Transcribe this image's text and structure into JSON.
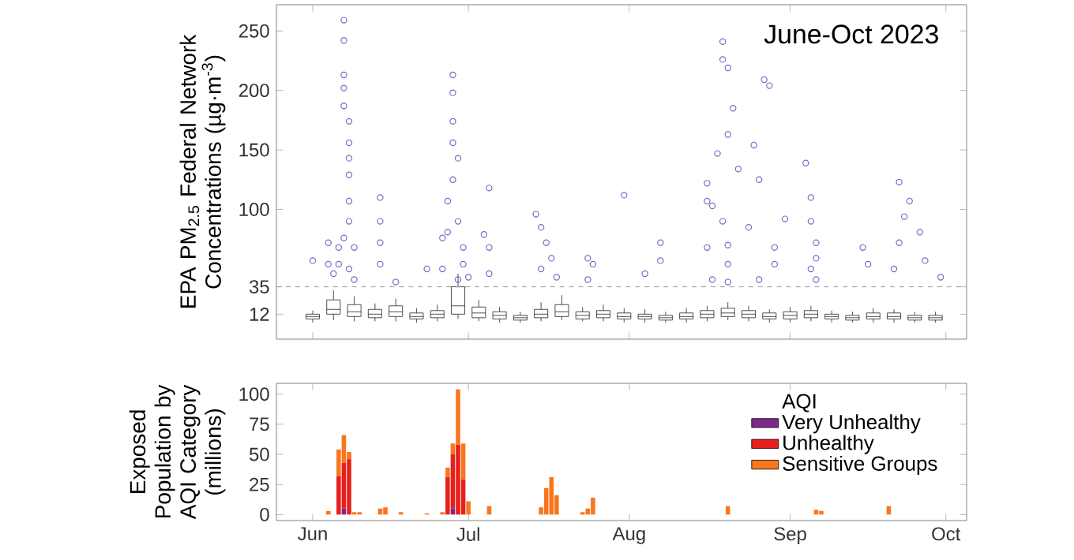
{
  "chart_data": [
    {
      "type": "scatter",
      "ylabel": "EPA PM$_{2.5}$ Federal Network Concentrations (µg·m$^{-3}$)",
      "annotations": [
        "June-Oct 2023"
      ],
      "xlim": [
        "2023-05-25",
        "2023-10-05"
      ],
      "xticks": [
        {
          "value": "2023-06-01",
          "label": null
        },
        {
          "value": "2023-07-01",
          "label": null
        },
        {
          "value": "2023-08-01",
          "label": null
        },
        {
          "value": "2023-09-01",
          "label": null
        },
        {
          "value": "2023-10-01",
          "label": null
        }
      ],
      "ylim": [
        -9,
        272
      ],
      "yticks": [
        12,
        35,
        100,
        150,
        200,
        250
      ],
      "tick_labels": "y",
      "ref_lines": [
        {
          "axis": "y",
          "value": 35,
          "color": "#9a9a9a",
          "line_style": "dashed"
        }
      ],
      "series": [
        {
          "type": "scatter",
          "color": "#6e6ec8",
          "marker": "circle",
          "x": [
            "2023-06-07",
            "2023-06-07",
            "2023-06-07",
            "2023-06-07",
            "2023-06-07",
            "2023-06-08",
            "2023-06-08",
            "2023-06-08",
            "2023-06-08",
            "2023-06-08",
            "2023-06-08",
            "2023-06-07",
            "2023-06-06",
            "2023-06-06",
            "2023-06-04",
            "2023-06-04",
            "2023-06-01",
            "2023-06-08",
            "2023-06-09",
            "2023-06-05",
            "2023-06-09",
            "2023-06-14",
            "2023-06-14",
            "2023-06-14",
            "2023-06-14",
            "2023-06-17",
            "2023-06-23",
            "2023-06-28",
            "2023-06-28",
            "2023-06-28",
            "2023-06-28",
            "2023-06-29",
            "2023-06-28",
            "2023-06-27",
            "2023-06-29",
            "2023-06-27",
            "2023-06-30",
            "2023-06-30",
            "2023-06-26",
            "2023-06-26",
            "2023-06-29",
            "2023-07-01",
            "2023-07-05",
            "2023-07-04",
            "2023-07-05",
            "2023-07-05",
            "2023-07-14",
            "2023-07-15",
            "2023-07-16",
            "2023-07-17",
            "2023-07-15",
            "2023-07-18",
            "2023-07-24",
            "2023-07-25",
            "2023-07-24",
            "2023-07-31",
            "2023-08-07",
            "2023-08-07",
            "2023-08-04",
            "2023-08-19",
            "2023-08-19",
            "2023-08-20",
            "2023-08-21",
            "2023-08-20",
            "2023-08-18",
            "2023-08-22",
            "2023-08-16",
            "2023-08-16",
            "2023-08-17",
            "2023-08-19",
            "2023-08-20",
            "2023-08-16",
            "2023-08-20",
            "2023-08-17",
            "2023-08-20",
            "2023-08-27",
            "2023-08-28",
            "2023-08-25",
            "2023-08-26",
            "2023-08-24",
            "2023-08-29",
            "2023-08-29",
            "2023-08-26",
            "2023-09-04",
            "2023-09-05",
            "2023-09-05",
            "2023-09-06",
            "2023-09-06",
            "2023-09-05",
            "2023-09-06",
            "2023-08-31",
            "2023-09-15",
            "2023-09-16",
            "2023-09-21",
            "2023-09-22",
            "2023-09-22",
            "2023-09-24",
            "2023-09-23",
            "2023-09-26",
            "2023-09-27",
            "2023-09-30"
          ],
          "values": [
            259,
            242,
            213,
            202,
            187,
            174,
            156,
            143,
            129,
            107,
            90,
            76,
            68,
            54,
            72,
            54,
            57,
            50,
            41,
            46,
            68,
            110,
            90,
            72,
            54,
            39,
            50,
            213,
            198,
            174,
            156,
            143,
            125,
            107,
            90,
            81,
            68,
            54,
            76,
            50,
            41,
            43,
            118,
            79,
            68,
            46,
            96,
            85,
            72,
            59,
            50,
            43,
            59,
            54,
            41,
            112,
            72,
            57,
            46,
            241,
            226,
            219,
            185,
            163,
            147,
            134,
            122,
            107,
            103,
            90,
            70,
            68,
            54,
            41,
            39,
            209,
            204,
            154,
            125,
            85,
            68,
            54,
            41,
            139,
            110,
            90,
            72,
            59,
            50,
            41,
            92,
            68,
            54,
            50,
            72,
            123,
            107,
            94,
            81,
            57,
            43
          ]
        },
        {
          "type": "box",
          "color": "#222222",
          "x": [
            "2023-06-01",
            "2023-06-05",
            "2023-06-09",
            "2023-06-13",
            "2023-06-17",
            "2023-06-21",
            "2023-06-25",
            "2023-06-29",
            "2023-07-03",
            "2023-07-07",
            "2023-07-11",
            "2023-07-15",
            "2023-07-19",
            "2023-07-23",
            "2023-07-27",
            "2023-07-31",
            "2023-08-04",
            "2023-08-08",
            "2023-08-12",
            "2023-08-16",
            "2023-08-20",
            "2023-08-24",
            "2023-08-28",
            "2023-09-01",
            "2023-09-05",
            "2023-09-09",
            "2023-09-13",
            "2023-09-17",
            "2023-09-21",
            "2023-09-25",
            "2023-09-29"
          ],
          "boxes": [
            {
              "low": 5,
              "q1": 8,
              "median": 10,
              "q3": 12,
              "high": 15
            },
            {
              "low": 7,
              "q1": 12,
              "median": 16,
              "q3": 24,
              "high": 32
            },
            {
              "low": 6,
              "q1": 10,
              "median": 14,
              "q3": 20,
              "high": 27
            },
            {
              "low": 6,
              "q1": 9,
              "median": 12,
              "q3": 16,
              "high": 21
            },
            {
              "low": 6,
              "q1": 10,
              "median": 14,
              "q3": 19,
              "high": 25
            },
            {
              "low": 5,
              "q1": 8,
              "median": 10,
              "q3": 13,
              "high": 17
            },
            {
              "low": 6,
              "q1": 9,
              "median": 12,
              "q3": 15,
              "high": 20
            },
            {
              "low": 8,
              "q1": 12,
              "median": 19,
              "q3": 35,
              "high": 46
            },
            {
              "low": 6,
              "q1": 9,
              "median": 13,
              "q3": 18,
              "high": 24
            },
            {
              "low": 5,
              "q1": 8,
              "median": 11,
              "q3": 14,
              "high": 18
            },
            {
              "low": 5,
              "q1": 7,
              "median": 9,
              "q3": 11,
              "high": 14
            },
            {
              "low": 6,
              "q1": 9,
              "median": 12,
              "q3": 16,
              "high": 22
            },
            {
              "low": 7,
              "q1": 10,
              "median": 14,
              "q3": 20,
              "high": 28
            },
            {
              "low": 6,
              "q1": 8,
              "median": 11,
              "q3": 14,
              "high": 18
            },
            {
              "low": 6,
              "q1": 9,
              "median": 12,
              "q3": 15,
              "high": 20
            },
            {
              "low": 5,
              "q1": 8,
              "median": 10,
              "q3": 13,
              "high": 17
            },
            {
              "low": 5,
              "q1": 8,
              "median": 10,
              "q3": 12,
              "high": 16
            },
            {
              "low": 5,
              "q1": 7,
              "median": 9,
              "q3": 11,
              "high": 14
            },
            {
              "low": 5,
              "q1": 8,
              "median": 10,
              "q3": 13,
              "high": 17
            },
            {
              "low": 6,
              "q1": 9,
              "median": 12,
              "q3": 15,
              "high": 19
            },
            {
              "low": 7,
              "q1": 10,
              "median": 13,
              "q3": 17,
              "high": 22
            },
            {
              "low": 6,
              "q1": 9,
              "median": 12,
              "q3": 15,
              "high": 19
            },
            {
              "low": 5,
              "q1": 8,
              "median": 10,
              "q3": 13,
              "high": 16
            },
            {
              "low": 5,
              "q1": 8,
              "median": 11,
              "q3": 14,
              "high": 18
            },
            {
              "low": 6,
              "q1": 9,
              "median": 12,
              "q3": 15,
              "high": 19
            },
            {
              "low": 5,
              "q1": 8,
              "median": 10,
              "q3": 12,
              "high": 15
            },
            {
              "low": 5,
              "q1": 7,
              "median": 9,
              "q3": 11,
              "high": 14
            },
            {
              "low": 5,
              "q1": 8,
              "median": 10,
              "q3": 13,
              "high": 17
            },
            {
              "low": 5,
              "q1": 8,
              "median": 10,
              "q3": 13,
              "high": 16
            },
            {
              "low": 5,
              "q1": 7,
              "median": 9,
              "q3": 11,
              "high": 14
            },
            {
              "low": 5,
              "q1": 7,
              "median": 9,
              "q3": 11,
              "high": 14
            }
          ]
        }
      ]
    },
    {
      "type": "bar",
      "stacked": true,
      "ylabel": "Exposed Population by AQI Category (millions)",
      "legend_title": "AQI",
      "legend": "top right",
      "xlim": [
        "2023-05-25",
        "2023-10-05"
      ],
      "ylim": [
        -5,
        109
      ],
      "yticks": [
        0,
        25,
        50,
        75,
        100
      ],
      "xticks": [
        {
          "value": "2023-06-01",
          "label": "Jun"
        },
        {
          "value": "2023-07-01",
          "label": "Jul"
        },
        {
          "value": "2023-08-01",
          "label": "Aug"
        },
        {
          "value": "2023-09-01",
          "label": "Sep"
        },
        {
          "value": "2023-10-01",
          "label": "Oct"
        }
      ],
      "x": [
        "2023-06-04",
        "2023-06-06",
        "2023-06-07",
        "2023-06-08",
        "2023-06-09",
        "2023-06-10",
        "2023-06-14",
        "2023-06-15",
        "2023-06-18",
        "2023-06-23",
        "2023-06-26",
        "2023-06-27",
        "2023-06-28",
        "2023-06-29",
        "2023-06-30",
        "2023-07-01",
        "2023-07-05",
        "2023-07-15",
        "2023-07-16",
        "2023-07-17",
        "2023-07-18",
        "2023-07-23",
        "2023-07-24",
        "2023-07-25",
        "2023-08-20",
        "2023-09-06",
        "2023-09-07",
        "2023-09-20"
      ],
      "series": [
        {
          "name": "Very Unhealthy",
          "color": "#7b2a8c",
          "values": [
            null,
            null,
            5,
            null,
            null,
            null,
            null,
            null,
            null,
            null,
            null,
            null,
            5,
            null,
            null,
            null,
            null,
            null,
            null,
            null,
            null,
            null,
            null,
            null,
            null,
            null,
            null,
            null
          ]
        },
        {
          "name": "Unhealthy",
          "color": "#e8201c",
          "values": [
            null,
            32,
            38,
            46,
            null,
            null,
            null,
            null,
            null,
            null,
            null,
            31,
            45,
            58,
            29,
            null,
            null,
            null,
            null,
            null,
            null,
            null,
            null,
            null,
            null,
            null,
            null,
            null
          ]
        },
        {
          "name": "Sensitive Groups",
          "color": "#f7761e",
          "values": [
            3,
            22,
            23,
            6,
            2,
            2,
            5,
            6,
            2,
            1,
            2,
            8,
            9,
            46,
            30,
            11,
            7,
            6,
            22,
            31,
            16,
            2,
            5,
            14,
            7,
            4,
            3,
            7
          ]
        }
      ]
    }
  ]
}
